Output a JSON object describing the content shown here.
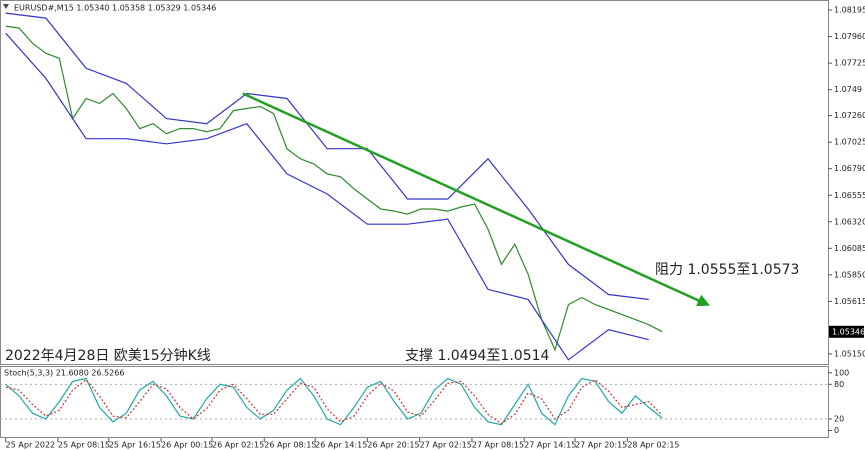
{
  "chart_data": [
    {
      "type": "line",
      "title": "EURUSD#,M15  1.05340 1.05358 1.05329 1.05346",
      "subtitle": "2022年4月28日 欧美15分钟K线",
      "annotations": [
        "阻力 1.0555至1.0573",
        "支撑 1.0494至1.0514"
      ],
      "last_price": 1.05346,
      "xlim": [
        -0.2,
        61.6
      ],
      "ylim": [
        1.05052,
        1.08275
      ],
      "yticks": [
        1.08195,
        {
          "value": 1.0796,
          "label": "1.07960"
        },
        1.07725,
        1.0749,
        {
          "value": 1.0726,
          "label": "1.07260"
        },
        1.07025,
        {
          "value": 1.0679,
          "label": "1.06790"
        },
        1.06555,
        {
          "value": 1.0632,
          "label": "1.06320"
        },
        1.06085,
        {
          "value": 1.0585,
          "label": "1.05850"
        },
        1.05615,
        {
          "value": 1.0515,
          "label": "1.05150"
        }
      ],
      "series": [
        {
          "color": "#2e8b2e",
          "x": [
            0,
            1,
            2,
            3,
            4,
            5,
            6,
            7,
            8,
            9,
            10,
            11,
            12,
            13,
            14,
            15,
            16,
            17,
            18,
            19,
            20,
            21,
            22,
            23,
            24,
            25,
            26,
            27,
            28,
            29,
            30,
            31,
            32,
            33,
            34,
            35,
            36,
            37,
            38,
            39,
            40,
            41,
            42,
            43,
            44,
            45,
            46,
            47,
            48,
            49
          ],
          "values": [
            1.08053,
            1.08035,
            1.07901,
            1.07812,
            1.07768,
            1.07234,
            1.07412,
            1.07367,
            1.07456,
            1.07323,
            1.07145,
            1.07189,
            1.071,
            1.07145,
            1.07145,
            1.07118,
            1.07145,
            1.07305,
            1.07323,
            1.07341,
            1.07278,
            1.06967,
            1.06878,
            1.06833,
            1.06744,
            1.06718,
            1.06611,
            1.06522,
            1.06433,
            1.06415,
            1.06388,
            1.06433,
            1.06433,
            1.06415,
            1.06451,
            1.06477,
            1.06255,
            1.05943,
            1.06121,
            1.05854,
            1.05454,
            1.05187,
            1.05587,
            1.0565,
            1.05587,
            1.05543,
            1.05498,
            1.05454,
            1.05409,
            1.05347
          ]
        },
        {
          "color": "#3535c8",
          "x": [
            0,
            3,
            6,
            9,
            12,
            15,
            18,
            21,
            24,
            27,
            30,
            33,
            36,
            39,
            42,
            45,
            48
          ],
          "values": [
            1.08168,
            1.08124,
            1.07679,
            1.07545,
            1.07234,
            1.07189,
            1.07456,
            1.07412,
            1.06967,
            1.06967,
            1.06522,
            1.06522,
            1.06878,
            1.06433,
            1.05943,
            1.05676,
            1.05632
          ]
        },
        {
          "color": "#3535c8",
          "x": [
            0,
            3,
            6,
            9,
            12,
            15,
            18,
            21,
            24,
            27,
            30,
            33,
            36,
            39,
            42,
            45,
            48
          ],
          "values": [
            1.0799,
            1.0759,
            1.07056,
            1.07056,
            1.07011,
            1.07056,
            1.07189,
            1.06744,
            1.06566,
            1.06299,
            1.06299,
            1.06344,
            1.05721,
            1.05632,
            1.05098,
            1.05365,
            1.05276
          ]
        },
        {
          "color": "#22a022",
          "arrow": true,
          "x": [
            17.7,
            52.4
          ],
          "values": [
            1.07456,
            1.05587
          ]
        }
      ]
    },
    {
      "type": "line",
      "title": "Stoch(5,3,3) 21.6080 26.5266",
      "xlim": [
        -0.2,
        61.6
      ],
      "ylim": [
        -13,
        110
      ],
      "yticks": [
        0,
        20,
        80,
        100
      ],
      "xticks": [
        {
          "value": 0,
          "label": "25 Apr 2022"
        },
        {
          "value": 3.9,
          "label": "25 Apr 08:15"
        },
        {
          "value": 7.7,
          "label": "25 Apr 16:15"
        },
        {
          "value": 11.6,
          "label": "26 Apr 00:15"
        },
        {
          "value": 15.4,
          "label": "26 Apr 02:15"
        },
        {
          "value": 19.3,
          "label": "26 Apr 08:15"
        },
        {
          "value": 23.1,
          "label": "26 Apr 14:15"
        },
        {
          "value": 27,
          "label": "26 Apr 20:15"
        },
        {
          "value": 30.9,
          "label": "27 Apr 02:15"
        },
        {
          "value": 34.8,
          "label": "27 Apr 08:15"
        },
        {
          "value": 38.7,
          "label": "27 Apr 14:15"
        },
        {
          "value": 42.5,
          "label": "27 Apr 20:15"
        },
        {
          "value": 46.4,
          "label": "28 Apr 02:15"
        }
      ],
      "series": [
        {
          "color": "#20a8a8",
          "x": [
            0,
            1,
            2,
            3,
            4,
            5,
            6,
            7,
            8,
            9,
            10,
            11,
            12,
            13,
            14,
            15,
            16,
            17,
            18,
            19,
            20,
            21,
            22,
            23,
            24,
            25,
            26,
            27,
            28,
            29,
            30,
            31,
            32,
            33,
            34,
            35,
            36,
            37,
            38,
            39,
            40,
            41,
            42,
            43,
            44,
            45,
            46,
            47,
            48,
            49
          ],
          "values": [
            80,
            60,
            30,
            20,
            50,
            85,
            90,
            40,
            15,
            30,
            70,
            85,
            60,
            25,
            20,
            55,
            80,
            75,
            40,
            20,
            35,
            70,
            90,
            60,
            20,
            10,
            40,
            75,
            85,
            50,
            20,
            30,
            70,
            90,
            80,
            40,
            15,
            10,
            45,
            80,
            30,
            10,
            60,
            90,
            85,
            50,
            30,
            60,
            40,
            21.6
          ]
        },
        {
          "color": "#d03030",
          "dashed": true,
          "x": [
            0,
            1,
            2,
            3,
            4,
            5,
            6,
            7,
            8,
            9,
            10,
            11,
            12,
            13,
            14,
            15,
            16,
            17,
            18,
            19,
            20,
            21,
            22,
            23,
            24,
            25,
            26,
            27,
            28,
            29,
            30,
            31,
            32,
            33,
            34,
            35,
            36,
            37,
            38,
            39,
            40,
            41,
            42,
            43,
            44,
            45,
            46,
            47,
            48,
            49
          ],
          "values": [
            75,
            70,
            45,
            25,
            35,
            70,
            88,
            60,
            25,
            22,
            50,
            80,
            72,
            40,
            20,
            38,
            70,
            80,
            55,
            28,
            28,
            55,
            82,
            75,
            38,
            15,
            25,
            60,
            82,
            68,
            32,
            25,
            52,
            82,
            85,
            60,
            28,
            12,
            28,
            65,
            55,
            20,
            35,
            75,
            88,
            68,
            40,
            45,
            50,
            26.5
          ]
        }
      ]
    }
  ]
}
